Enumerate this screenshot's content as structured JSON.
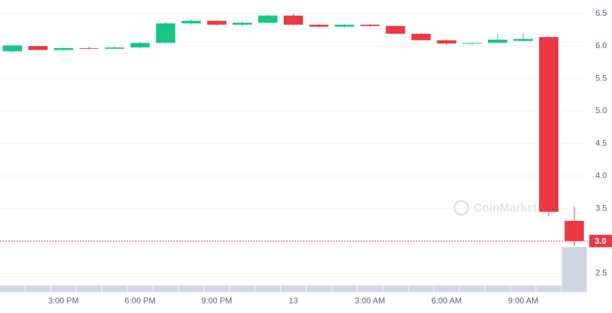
{
  "chart_data": {
    "type": "candlestick",
    "categories": [
      null,
      null,
      "3:00 PM",
      null,
      null,
      "6:00 PM",
      null,
      null,
      "9:00 PM",
      null,
      null,
      "13",
      null,
      null,
      "3:00 AM",
      null,
      null,
      "6:00 AM",
      null,
      null,
      "9:00 AM",
      null,
      null
    ],
    "open": [
      5.92,
      6.0,
      5.94,
      5.97,
      5.96,
      5.98,
      6.05,
      6.35,
      6.39,
      6.33,
      6.36,
      6.47,
      6.33,
      6.3,
      6.33,
      6.31,
      6.19,
      6.09,
      6.04,
      6.05,
      6.08,
      6.14,
      3.31
    ],
    "high": [
      6.02,
      6.01,
      5.98,
      5.99,
      5.99,
      6.07,
      6.37,
      6.41,
      6.4,
      6.38,
      6.48,
      6.5,
      6.34,
      6.34,
      6.34,
      6.32,
      6.2,
      6.1,
      6.06,
      6.19,
      6.2,
      6.15,
      3.53
    ],
    "low": [
      5.91,
      5.93,
      5.93,
      5.95,
      5.95,
      5.96,
      6.04,
      6.33,
      6.32,
      6.31,
      6.35,
      6.32,
      6.29,
      6.28,
      6.3,
      6.19,
      6.09,
      6.02,
      6.03,
      6.04,
      6.07,
      3.38,
      2.92
    ],
    "close": [
      6.01,
      5.94,
      5.97,
      5.96,
      5.98,
      6.05,
      6.35,
      6.39,
      6.33,
      6.36,
      6.47,
      6.33,
      6.3,
      6.33,
      6.31,
      6.19,
      6.09,
      6.04,
      6.05,
      6.1,
      6.11,
      3.45,
      3.0
    ],
    "volume": [
      9,
      9,
      9,
      9,
      9,
      9,
      9,
      9,
      9,
      9,
      9,
      9,
      9,
      9,
      9,
      9,
      9,
      9,
      9,
      9,
      9,
      9,
      65
    ],
    "up_color": "#16c784",
    "down_color": "#ea3943",
    "volume_color": "#cfd6e4",
    "ylim": [
      2.22,
      6.71
    ],
    "yticks": [
      2.5,
      {
        "value": 3,
        "label": "3.0"
      },
      3.5,
      {
        "value": 4,
        "label": "4.0"
      },
      4.5,
      {
        "value": 5,
        "label": "5.0"
      },
      5.5,
      {
        "value": 6,
        "label": "6.0"
      },
      6.5
    ],
    "current_price": {
      "value": 3.0,
      "label": "3.0"
    },
    "watermark": "CoinMarketCap",
    "grid": true
  }
}
